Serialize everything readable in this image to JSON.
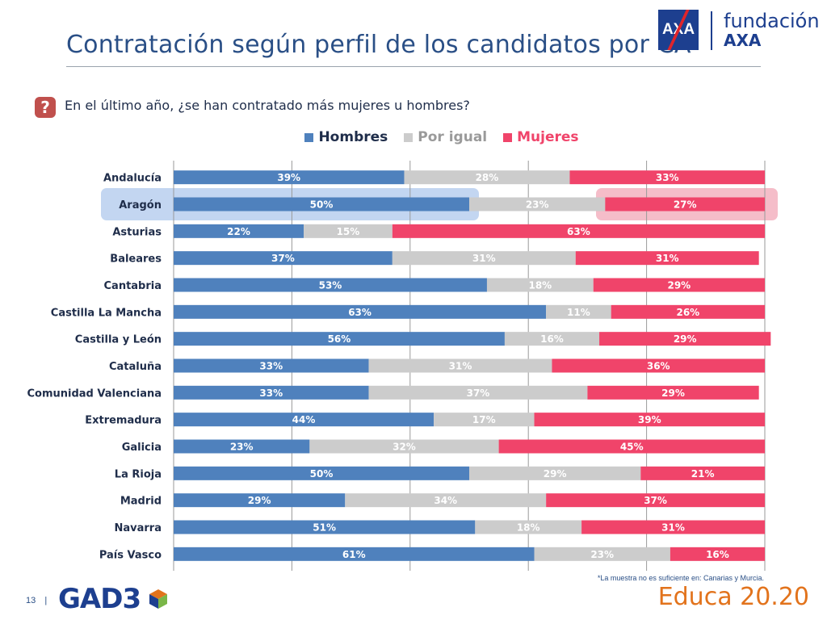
{
  "title": "Contratación según perfil de los candidatos por CA",
  "logo": {
    "mark": "AXA",
    "line1": "fundación",
    "line2": "AXA"
  },
  "question": {
    "icon": "question-icon",
    "icon_glyph": "?",
    "text": "En el último año, ¿se han contratado más mujeres u hombres?"
  },
  "colors": {
    "hombres": "#4f81bd",
    "por_igual": "#cccccc",
    "mujeres": "#f0446a",
    "highlight_blue": "#b8cfee",
    "highlight_pink": "#f3b1bf",
    "title": "#2a4f86"
  },
  "chart_data": {
    "type": "bar",
    "orientation": "horizontal",
    "stacked": true,
    "categories": [
      "Andalucía",
      "Aragón",
      "Asturias",
      "Baleares",
      "Cantabria",
      "Castilla La Mancha",
      "Castilla y León",
      "Cataluña",
      "Comunidad Valenciana",
      "Extremadura",
      "Galicia",
      "La Rioja",
      "Madrid",
      "Navarra",
      "País Vasco"
    ],
    "series": [
      {
        "name": "Hombres",
        "values": [
          39,
          50,
          22,
          37,
          53,
          63,
          56,
          33,
          33,
          44,
          23,
          50,
          29,
          51,
          61
        ]
      },
      {
        "name": "Por igual",
        "values": [
          28,
          23,
          15,
          31,
          18,
          11,
          16,
          31,
          37,
          17,
          32,
          29,
          34,
          18,
          23
        ]
      },
      {
        "name": "Mujeres",
        "values": [
          33,
          27,
          63,
          31,
          29,
          26,
          29,
          36,
          29,
          39,
          45,
          21,
          37,
          31,
          16
        ]
      }
    ],
    "value_suffix": "%",
    "xlim": [
      0,
      100
    ],
    "gridlines": true,
    "legend_position": "top",
    "highlighted_category": "Aragón"
  },
  "footnote": "*La  muestra  no es suficiente en: Canarias y Murcia.",
  "footer": {
    "page_number": "13",
    "separator": "|",
    "gad3_logo": "GAD3",
    "educa_logo": "Educa 20.20"
  }
}
